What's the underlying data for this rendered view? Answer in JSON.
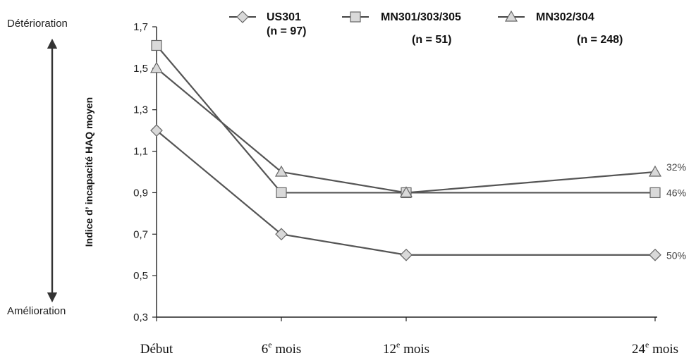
{
  "chart_data": {
    "type": "line",
    "title": "",
    "ylabel": "Indice d’ incapacité HAQ moyen",
    "xlabel": "",
    "categories": [
      "Début",
      "6e mois",
      "12e mois",
      "24e mois"
    ],
    "ylim": [
      0.3,
      1.7
    ],
    "yticks": [
      "0,3",
      "0,5",
      "0,7",
      "0,9",
      "1,1",
      "1,3",
      "1,5",
      "1,7"
    ],
    "top_label": "Détérioration",
    "bottom_label": "Amélioration",
    "legend_position": "top",
    "series": [
      {
        "name": "US301",
        "n_label": "(n = 97)",
        "marker": "diamond",
        "values": [
          1.2,
          0.7,
          0.6,
          0.6
        ],
        "end_label": "50%"
      },
      {
        "name": "MN301/303/305",
        "n_label": "(n = 51)",
        "marker": "square",
        "values": [
          1.61,
          0.9,
          0.9,
          0.9
        ],
        "end_label": "46%"
      },
      {
        "name": "MN302/304",
        "n_label": "(n = 248)",
        "marker": "triangle",
        "values": [
          1.5,
          1.0,
          0.9,
          1.0
        ],
        "end_label": "32%"
      }
    ],
    "colors": {
      "line": "#555555",
      "marker_fill": "#d9d9d9",
      "marker_stroke": "#666666",
      "arrow": "#333333"
    }
  }
}
